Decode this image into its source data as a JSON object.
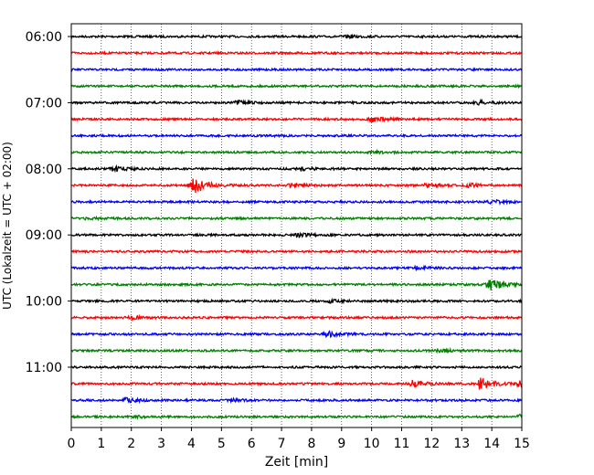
{
  "chart_data": {
    "type": "line",
    "xlabel": "Zeit  [min]",
    "ylabel": "UTC (Lokalzeit = UTC + 02:00)",
    "xlim": [
      0,
      15
    ],
    "x_ticks": [
      0,
      1,
      2,
      3,
      4,
      5,
      6,
      7,
      8,
      9,
      10,
      11,
      12,
      13,
      14,
      15
    ],
    "x_tick_labels": [
      "0",
      "1",
      "2",
      "3",
      "4",
      "5",
      "6",
      "7",
      "8",
      "9",
      "10",
      "11",
      "12",
      "13",
      "14",
      "15"
    ],
    "y_tick_labels": [
      "06:00",
      "07:00",
      "08:00",
      "09:00",
      "10:00",
      "11:00"
    ],
    "y_tick_rows": [
      0,
      4,
      8,
      12,
      16,
      20
    ],
    "grid": {
      "x": true,
      "y": false,
      "style": "dotted"
    },
    "trace_colors": [
      "#000000",
      "#ff0000",
      "#0000ff",
      "#008000"
    ],
    "series": [
      {
        "start": "06:00",
        "color": "#000000",
        "events": [
          {
            "x": 9.2,
            "amp": 1.5
          }
        ]
      },
      {
        "start": "06:15",
        "color": "#ff0000",
        "events": []
      },
      {
        "start": "06:30",
        "color": "#0000ff",
        "events": []
      },
      {
        "start": "06:45",
        "color": "#008000",
        "events": []
      },
      {
        "start": "07:00",
        "color": "#000000",
        "events": [
          {
            "x": 5.5,
            "amp": 2
          },
          {
            "x": 13.5,
            "amp": 2
          }
        ]
      },
      {
        "start": "07:15",
        "color": "#ff0000",
        "events": [
          {
            "x": 10.0,
            "amp": 3
          }
        ]
      },
      {
        "start": "07:30",
        "color": "#0000ff",
        "events": []
      },
      {
        "start": "07:45",
        "color": "#008000",
        "events": [
          {
            "x": 10.0,
            "amp": 1.5
          }
        ]
      },
      {
        "start": "08:00",
        "color": "#000000",
        "events": [
          {
            "x": 1.4,
            "amp": 3
          },
          {
            "x": 7.6,
            "amp": 2
          }
        ]
      },
      {
        "start": "08:15",
        "color": "#ff0000",
        "events": [
          {
            "x": 4.05,
            "amp": 12
          },
          {
            "x": 7.3,
            "amp": 2
          },
          {
            "x": 11.8,
            "amp": 2
          },
          {
            "x": 13.2,
            "amp": 2
          }
        ]
      },
      {
        "start": "08:30",
        "color": "#0000ff",
        "events": [
          {
            "x": 14.0,
            "amp": 2
          }
        ]
      },
      {
        "start": "08:45",
        "color": "#008000",
        "events": [
          {
            "x": 0.5,
            "amp": 1.5
          }
        ]
      },
      {
        "start": "09:00",
        "color": "#000000",
        "events": [
          {
            "x": 7.5,
            "amp": 2
          }
        ]
      },
      {
        "start": "09:15",
        "color": "#ff0000",
        "events": []
      },
      {
        "start": "09:30",
        "color": "#0000ff",
        "events": [
          {
            "x": 11.5,
            "amp": 2
          }
        ]
      },
      {
        "start": "09:45",
        "color": "#008000",
        "events": [
          {
            "x": 13.9,
            "amp": 8
          }
        ]
      },
      {
        "start": "10:00",
        "color": "#000000",
        "events": [
          {
            "x": 8.6,
            "amp": 1.5
          }
        ]
      },
      {
        "start": "10:15",
        "color": "#ff0000",
        "events": [
          {
            "x": 2.0,
            "amp": 2
          }
        ]
      },
      {
        "start": "10:30",
        "color": "#0000ff",
        "events": [
          {
            "x": 8.5,
            "amp": 3
          }
        ]
      },
      {
        "start": "10:45",
        "color": "#008000",
        "events": [
          {
            "x": 12.2,
            "amp": 2
          }
        ]
      },
      {
        "start": "11:00",
        "color": "#000000",
        "events": []
      },
      {
        "start": "11:15",
        "color": "#ff0000",
        "events": [
          {
            "x": 11.3,
            "amp": 4
          },
          {
            "x": 13.6,
            "amp": 7
          },
          {
            "x": 14.9,
            "amp": 3
          }
        ]
      },
      {
        "start": "11:30",
        "color": "#0000ff",
        "events": [
          {
            "x": 1.8,
            "amp": 2.5
          },
          {
            "x": 5.3,
            "amp": 2
          }
        ]
      },
      {
        "start": "11:45",
        "color": "#008000",
        "events": [
          {
            "x": 2.0,
            "amp": 1.5
          },
          {
            "x": 14.9,
            "amp": 2
          }
        ]
      }
    ]
  }
}
